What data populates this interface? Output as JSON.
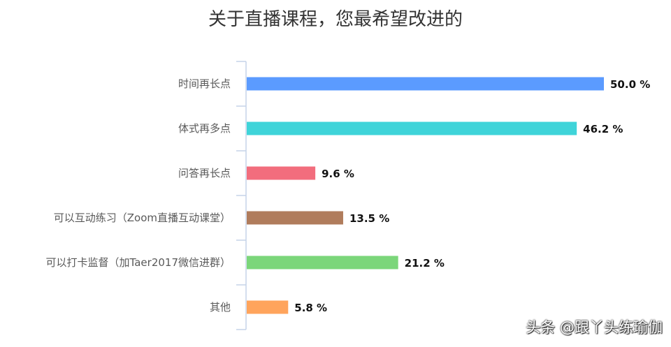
{
  "chart_data": {
    "type": "bar",
    "orientation": "horizontal",
    "title": "关于直播课程，您最希望改进的",
    "categories": [
      "时间再长点",
      "体式再多点",
      "问答再长点",
      "可以互动练习（Zoom直播互动课堂）",
      "可以打卡监督（加Taer2017微信进群）",
      "其他"
    ],
    "values": [
      50.0,
      46.2,
      9.6,
      13.5,
      21.2,
      5.8
    ],
    "value_labels": [
      "50.0 %",
      "46.2 %",
      "9.6 %",
      "13.5 %",
      "21.2 %",
      "5.8 %"
    ],
    "colors": [
      "#5b9bff",
      "#3fd4d9",
      "#f26d7d",
      "#b07c5c",
      "#7bd67a",
      "#ffa45c"
    ],
    "xlim": [
      0,
      50
    ],
    "grid": false,
    "legend": "none",
    "xlabel": "",
    "ylabel": ""
  },
  "watermark": "头条 @跟丫头练瑜伽",
  "axis_color": "#c5d3e8"
}
